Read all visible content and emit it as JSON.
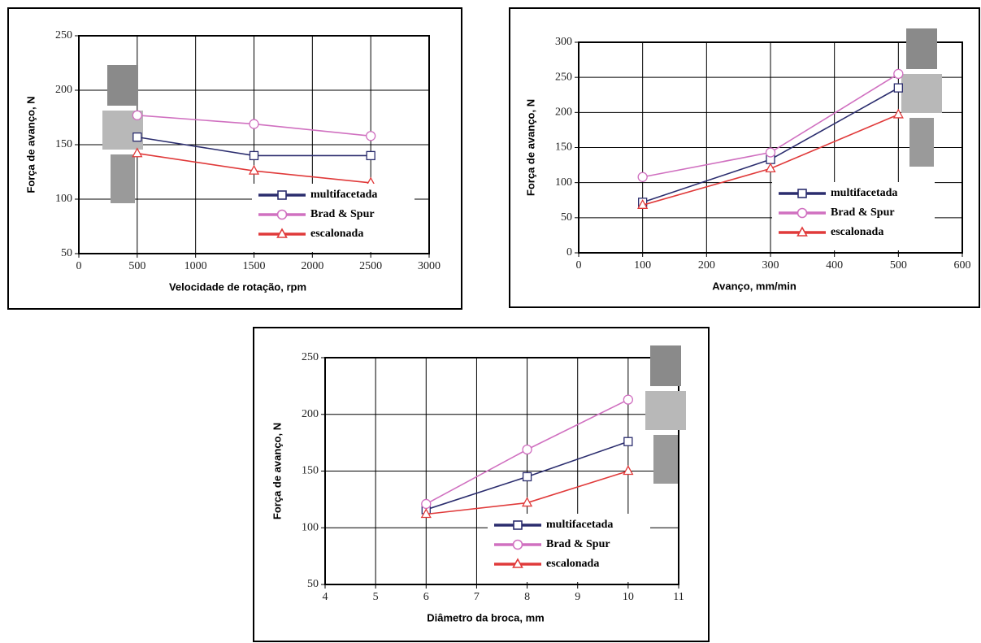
{
  "chart_data": [
    {
      "type": "line",
      "x_label": "Velocidade de rotação, rpm",
      "y_label": "Força de avanço, N",
      "x": [
        500,
        1500,
        2500
      ],
      "xlim": [
        0,
        3000
      ],
      "xticks": [
        0,
        500,
        1000,
        1500,
        2000,
        2500,
        3000
      ],
      "ylim": [
        50,
        250
      ],
      "yticks": [
        50,
        100,
        150,
        200,
        250
      ],
      "grid": true,
      "series": [
        {
          "name": "multifacetada",
          "color": "#2b2d6e",
          "marker": "square",
          "values": [
            157,
            140,
            140
          ]
        },
        {
          "name": "Brad & Spur",
          "color": "#d070c0",
          "marker": "circle",
          "values": [
            177,
            169,
            158
          ]
        },
        {
          "name": "escalonada",
          "color": "#e03a3a",
          "marker": "triangle",
          "values": [
            142,
            126,
            115
          ]
        }
      ]
    },
    {
      "type": "line",
      "x_label": "Avanço, mm/min",
      "y_label": "Força de avanço, N",
      "x": [
        100,
        300,
        500
      ],
      "xlim": [
        0,
        600
      ],
      "xticks": [
        0,
        100,
        200,
        300,
        400,
        500,
        600
      ],
      "ylim": [
        0,
        300
      ],
      "yticks": [
        0,
        50,
        100,
        150,
        200,
        250,
        300
      ],
      "grid": true,
      "series": [
        {
          "name": "multifacetada",
          "color": "#2b2d6e",
          "marker": "square",
          "values": [
            72,
            133,
            235
          ]
        },
        {
          "name": "Brad & Spur",
          "color": "#d070c0",
          "marker": "circle",
          "values": [
            108,
            143,
            255
          ]
        },
        {
          "name": "escalonada",
          "color": "#e03a3a",
          "marker": "triangle",
          "values": [
            68,
            120,
            197
          ]
        }
      ]
    },
    {
      "type": "line",
      "x_label": "Diâmetro da broca, mm",
      "y_label": "Força de avanço, N",
      "x": [
        6,
        8,
        10
      ],
      "xlim": [
        4,
        11
      ],
      "xticks": [
        4,
        5,
        6,
        7,
        8,
        9,
        10,
        11
      ],
      "ylim": [
        50,
        250
      ],
      "yticks": [
        50,
        100,
        150,
        200,
        250
      ],
      "grid": true,
      "series": [
        {
          "name": "multifacetada",
          "color": "#2b2d6e",
          "marker": "square",
          "values": [
            116,
            145,
            176
          ]
        },
        {
          "name": "Brad & Spur",
          "color": "#d070c0",
          "marker": "circle",
          "values": [
            121,
            169,
            213
          ]
        },
        {
          "name": "escalonada",
          "color": "#e03a3a",
          "marker": "triangle",
          "values": [
            112,
            122,
            150
          ]
        }
      ]
    }
  ]
}
